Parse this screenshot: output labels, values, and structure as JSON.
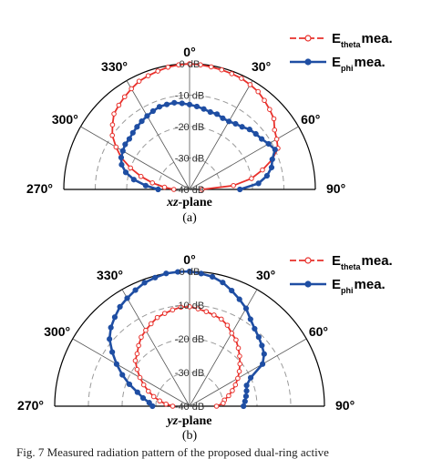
{
  "chart_data": [
    {
      "type": "polar-line",
      "panel_label": "(a)",
      "plane_label_italic": "xz",
      "plane_label_rest": "-plane",
      "angle_ticks": [
        "0°",
        "30°",
        "60°",
        "90°",
        "270°",
        "300°",
        "330°"
      ],
      "radial_labels": [
        "0 dB",
        "-10 dB",
        "-20 dB",
        "-30 dB",
        "-40 dB"
      ],
      "rlim": [
        -40,
        0
      ],
      "legend_position": "top-right",
      "series": [
        {
          "name": "E",
          "name_sub": "theta",
          "name_suffix": "mea.",
          "color": "#e8302b",
          "marker": "open-circle",
          "angles": [
            -90,
            -85,
            -80,
            -75,
            -70,
            -65,
            -60,
            -55,
            -50,
            -45,
            -40,
            -35,
            -30,
            -25,
            -20,
            -15,
            -10,
            -5,
            0,
            5,
            10,
            15,
            20,
            25,
            30,
            35,
            40,
            45,
            50,
            55,
            60,
            65,
            70,
            75,
            80,
            85,
            90
          ],
          "values": [
            -35,
            -32,
            -28,
            -24,
            -20,
            -16,
            -13,
            -10,
            -8,
            -6,
            -5,
            -4,
            -3,
            -2,
            -1.5,
            -1,
            -0.5,
            -0.2,
            0,
            -0.2,
            -0.4,
            -0.6,
            -0.8,
            -1,
            -1.5,
            -2,
            -3,
            -4,
            -5,
            -7,
            -8,
            -9,
            -12,
            -16,
            -20,
            -26,
            -36
          ]
        },
        {
          "name": "E",
          "name_sub": "phi",
          "name_suffix": "mea.",
          "color": "#1f4ea3",
          "marker": "filled-circle",
          "angles": [
            -90,
            -85,
            -80,
            -75,
            -70,
            -65,
            -60,
            -55,
            -50,
            -45,
            -40,
            -35,
            -30,
            -25,
            -20,
            -15,
            -10,
            -5,
            0,
            5,
            10,
            15,
            20,
            25,
            30,
            35,
            40,
            45,
            50,
            55,
            60,
            65,
            70,
            75,
            80,
            85,
            90
          ],
          "values": [
            -30,
            -26,
            -22,
            -19,
            -17,
            -16,
            -15.5,
            -15,
            -15,
            -14.5,
            -14,
            -13.5,
            -13,
            -12.5,
            -12,
            -12,
            -12,
            -12.5,
            -13,
            -13.5,
            -14,
            -14.5,
            -14.5,
            -15,
            -15,
            -14.5,
            -14,
            -13,
            -12.5,
            -12,
            -11,
            -10,
            -12,
            -13,
            -15,
            -18,
            -24
          ]
        }
      ]
    },
    {
      "type": "polar-line",
      "panel_label": "(b)",
      "plane_label_italic": "yz",
      "plane_label_rest": "-plane",
      "angle_ticks": [
        "0°",
        "30°",
        "60°",
        "90°",
        "270°",
        "300°",
        "330°"
      ],
      "radial_labels": [
        "0 dB",
        "-10 dB",
        "-20 dB",
        "-30 dB",
        "-40 dB"
      ],
      "rlim": [
        -40,
        0
      ],
      "legend_position": "top-right",
      "series": [
        {
          "name": "E",
          "name_sub": "theta",
          "name_suffix": "mea.",
          "color": "#e8302b",
          "marker": "open-circle",
          "angles": [
            -90,
            -85,
            -80,
            -75,
            -70,
            -65,
            -60,
            -55,
            -50,
            -45,
            -40,
            -35,
            -30,
            -25,
            -20,
            -15,
            -10,
            -5,
            0,
            5,
            10,
            15,
            20,
            25,
            30,
            35,
            40,
            45,
            50,
            55,
            60,
            65,
            70,
            75,
            80,
            85,
            90
          ],
          "values": [
            -35,
            -33,
            -31,
            -29,
            -27,
            -25,
            -23,
            -21,
            -19,
            -18,
            -16.5,
            -15,
            -14,
            -13,
            -12,
            -11.5,
            -11,
            -10.5,
            -10.5,
            -11,
            -11.5,
            -12,
            -12.5,
            -13.5,
            -15,
            -16,
            -17.5,
            -19,
            -20.5,
            -22,
            -23.5,
            -25,
            -26.5,
            -28,
            -29.5,
            -30,
            -32
          ]
        },
        {
          "name": "E",
          "name_sub": "phi",
          "name_suffix": "mea.",
          "color": "#1f4ea3",
          "marker": "filled-circle",
          "angles": [
            -90,
            -85,
            -80,
            -75,
            -70,
            -65,
            -60,
            -55,
            -50,
            -45,
            -40,
            -35,
            -30,
            -25,
            -20,
            -15,
            -10,
            -5,
            0,
            5,
            10,
            15,
            20,
            25,
            30,
            35,
            40,
            45,
            50,
            55,
            60,
            65,
            70,
            75,
            80,
            85,
            90
          ],
          "values": [
            -29,
            -28,
            -26,
            -24,
            -21,
            -18,
            -15,
            -12,
            -9,
            -7,
            -5.5,
            -4,
            -3,
            -2,
            -1,
            -0.5,
            0,
            0,
            0,
            -0.5,
            -1,
            -2,
            -3.5,
            -5,
            -6.5,
            -8.5,
            -10,
            -11,
            -12,
            -13,
            -15,
            -20,
            -22,
            -22.5,
            -23,
            -23.5,
            -24
          ]
        }
      ]
    }
  ],
  "caption": "Fig. 7 Measured radiation pattern of the proposed dual-ring active"
}
